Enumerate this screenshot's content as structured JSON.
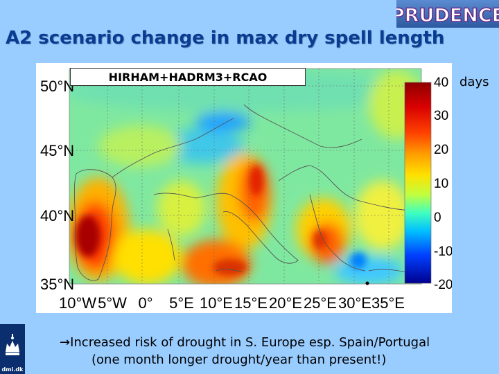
{
  "logo": {
    "text": "PRUDENCE"
  },
  "title": "A2 scenario change in max dry spell length",
  "map": {
    "model_label": "HIRHAM+HADRM3+RCAO",
    "units_label": "days",
    "lat_labels": [
      "50°N",
      "45°N",
      "40°N",
      "35°N"
    ],
    "lon_labels": [
      "10°W",
      "5°W",
      "0°",
      "5°E",
      "10°E",
      "15°E",
      "20°E",
      "25°E",
      "30°E",
      "35°E"
    ],
    "colorbar_ticks": [
      "40",
      "30",
      "20",
      "10",
      "0",
      "-10",
      "-20"
    ],
    "colorbar_range": [
      -20,
      40
    ],
    "palette": [
      "#00008f",
      "#0040ff",
      "#00c0ff",
      "#40ffbf",
      "#bfff40",
      "#ffc000",
      "#ff4000",
      "#8f0000"
    ]
  },
  "crest": {
    "text": "dmi.dk"
  },
  "note": {
    "line1": "→Increased risk of drought in S. Europe esp. Spain/Portugal",
    "line2": "(one month longer drought/year than present!)"
  }
}
